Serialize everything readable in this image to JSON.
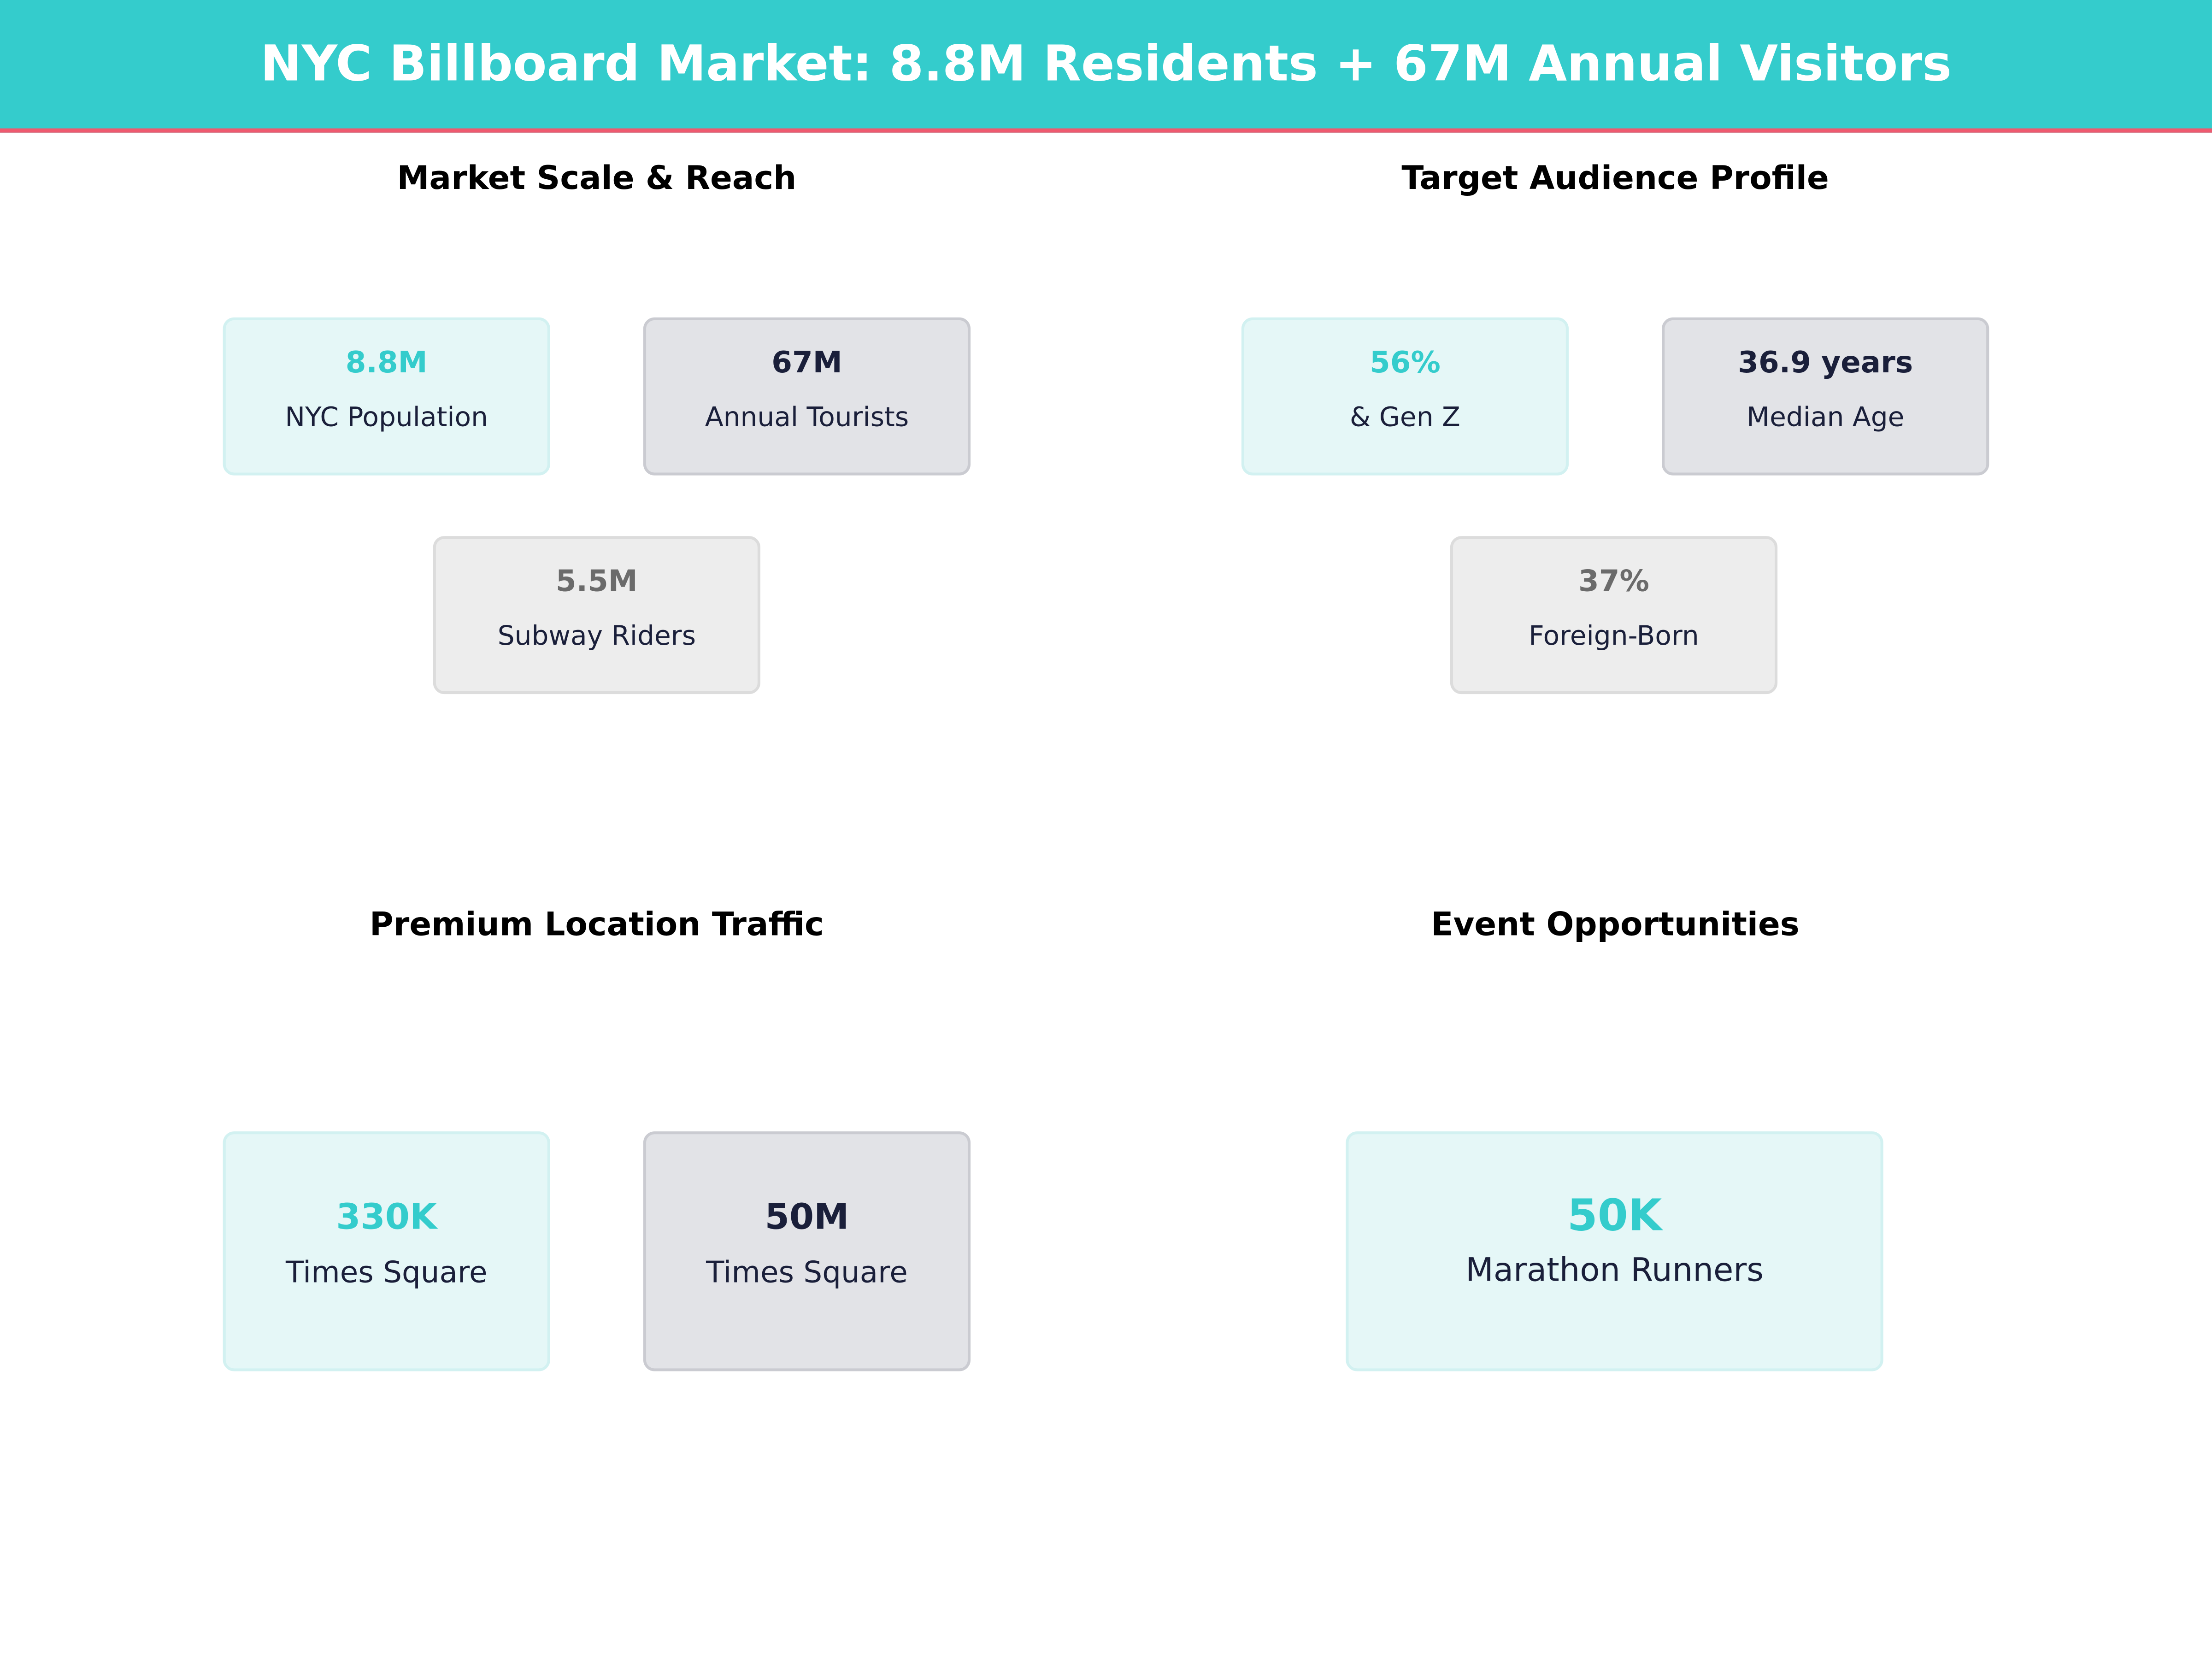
{
  "header": {
    "title": "NYC Billboard Market: 8.8M Residents + 67M Annual Visitors"
  },
  "colors": {
    "accent": "#34CCCC",
    "header_underline": "#EE5A6F",
    "dark": "#1A1F3A",
    "muted": "#6B6B6B"
  },
  "sections": [
    {
      "title": "Market Scale & Reach",
      "cards": [
        {
          "value": "8.8M",
          "label": "NYC Population"
        },
        {
          "value": "67M",
          "label": "Annual Tourists"
        },
        {
          "value": "5.5M",
          "label": "Subway Riders"
        }
      ]
    },
    {
      "title": "Target Audience Profile",
      "cards": [
        {
          "value": "56%",
          "label": "& Gen Z"
        },
        {
          "value": "36.9 years",
          "label": "Median Age"
        },
        {
          "value": "37%",
          "label": "Foreign-Born"
        }
      ]
    },
    {
      "title": "Premium Location Traffic",
      "cards": [
        {
          "value": "330K",
          "label": "Times Square"
        },
        {
          "value": "50M",
          "label": "Times Square"
        }
      ]
    },
    {
      "title": "Event Opportunities",
      "cards": [
        {
          "value": "50K",
          "label": "Marathon Runners"
        }
      ]
    }
  ]
}
